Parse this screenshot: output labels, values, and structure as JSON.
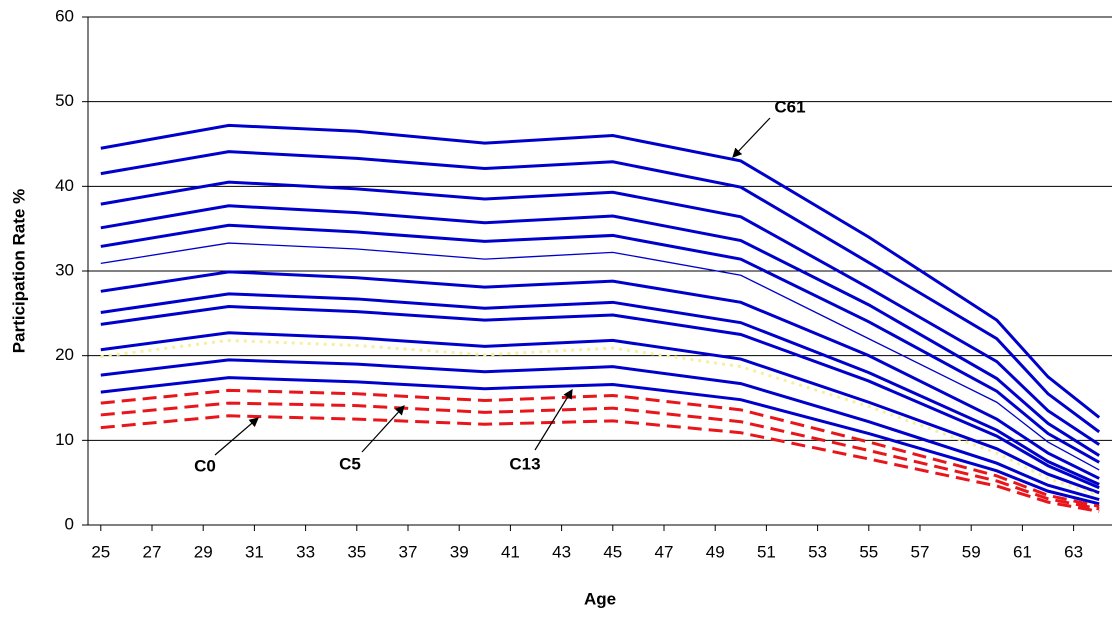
{
  "chart_data": {
    "type": "line",
    "x_label": "Age",
    "y_label": "Participation Rate %",
    "x": [
      25,
      30,
      35,
      40,
      45,
      50,
      55,
      60,
      62,
      64
    ],
    "xlim": [
      24.5,
      64.5
    ],
    "xticks": [
      25,
      27,
      29,
      31,
      33,
      35,
      37,
      39,
      41,
      43,
      45,
      47,
      49,
      51,
      53,
      55,
      57,
      59,
      61,
      63
    ],
    "ylim": [
      0,
      60
    ],
    "yticks": [
      0,
      10,
      20,
      30,
      40,
      50,
      60
    ],
    "grid": true,
    "series": [
      {
        "color": "#0000cc",
        "dash": "solid",
        "weight": "thick",
        "values": [
          44.5,
          47.2,
          46.5,
          45.1,
          46,
          43,
          34,
          24.2,
          17.5,
          12.7
        ]
      },
      {
        "color": "#0000cc",
        "dash": "solid",
        "weight": "thick",
        "values": [
          41.5,
          44.1,
          43.3,
          42.1,
          42.9,
          39.9,
          31,
          22,
          15.5,
          11
        ]
      },
      {
        "color": "#0000cc",
        "dash": "solid",
        "weight": "thick",
        "values": [
          37.9,
          40.5,
          39.7,
          38.5,
          39.3,
          36.4,
          28,
          19.3,
          13.5,
          9.5
        ]
      },
      {
        "color": "#0000cc",
        "dash": "solid",
        "weight": "thick",
        "values": [
          35.1,
          37.7,
          36.9,
          35.7,
          36.5,
          33.6,
          26,
          17.3,
          12,
          8.2
        ]
      },
      {
        "color": "#0000cc",
        "dash": "solid",
        "weight": "thick",
        "values": [
          32.9,
          35.4,
          34.6,
          33.5,
          34.2,
          31.4,
          24,
          15.8,
          10.8,
          7.4
        ]
      },
      {
        "color": "#0000cc",
        "dash": "solid",
        "weight": "thin",
        "values": [
          30.9,
          33.3,
          32.6,
          31.4,
          32.2,
          29.5,
          22,
          14.5,
          9.8,
          6.5
        ]
      },
      {
        "color": "#0000cc",
        "dash": "solid",
        "weight": "thick",
        "values": [
          27.6,
          29.9,
          29.2,
          28.1,
          28.8,
          26.3,
          20,
          12.5,
          8.5,
          5.5
        ]
      },
      {
        "color": "#0000cc",
        "dash": "solid",
        "weight": "thick",
        "values": [
          25.1,
          27.3,
          26.7,
          25.6,
          26.3,
          23.9,
          18,
          11.2,
          7.5,
          4.8
        ]
      },
      {
        "color": "#0000cc",
        "dash": "solid",
        "weight": "thick",
        "values": [
          23.7,
          25.8,
          25.2,
          24.2,
          24.8,
          22.5,
          17,
          10.5,
          7,
          4.4
        ]
      },
      {
        "color": "#0000cc",
        "dash": "solid",
        "weight": "thick",
        "values": [
          20.7,
          22.7,
          22.1,
          21.1,
          21.8,
          19.6,
          14.5,
          9,
          6,
          3.8
        ]
      },
      {
        "color": "#f5f0a0",
        "dash": "dotted",
        "weight": "thick",
        "values": [
          19.9,
          21.8,
          21.2,
          20.1,
          20.9,
          18.7,
          14,
          8.5,
          5.5,
          3.5
        ]
      },
      {
        "color": "#0000cc",
        "dash": "solid",
        "weight": "thick",
        "values": [
          17.7,
          19.5,
          19,
          18.1,
          18.7,
          16.7,
          12.2,
          7.3,
          4.7,
          3
        ]
      },
      {
        "color": "#0000cc",
        "dash": "solid",
        "weight": "thick",
        "values": [
          15.7,
          17.4,
          16.9,
          16.1,
          16.6,
          14.8,
          10.8,
          6.4,
          4,
          2.5
        ]
      },
      {
        "color": "#e8161b",
        "dash": "dashed",
        "weight": "thick",
        "values": [
          14.4,
          15.9,
          15.5,
          14.7,
          15.3,
          13.6,
          9.8,
          5.8,
          3.5,
          2.2
        ]
      },
      {
        "color": "#e8161b",
        "dash": "dashed",
        "weight": "thick",
        "values": [
          13,
          14.4,
          14.1,
          13.3,
          13.8,
          12.2,
          8.8,
          5.2,
          3.1,
          1.9
        ]
      },
      {
        "color": "#e8161b",
        "dash": "dashed",
        "weight": "thick",
        "values": [
          11.5,
          12.9,
          12.5,
          11.9,
          12.3,
          10.9,
          7.8,
          4.6,
          2.7,
          1.6
        ]
      }
    ],
    "annotations": [
      "C0",
      "C5",
      "C13",
      "C61"
    ]
  }
}
